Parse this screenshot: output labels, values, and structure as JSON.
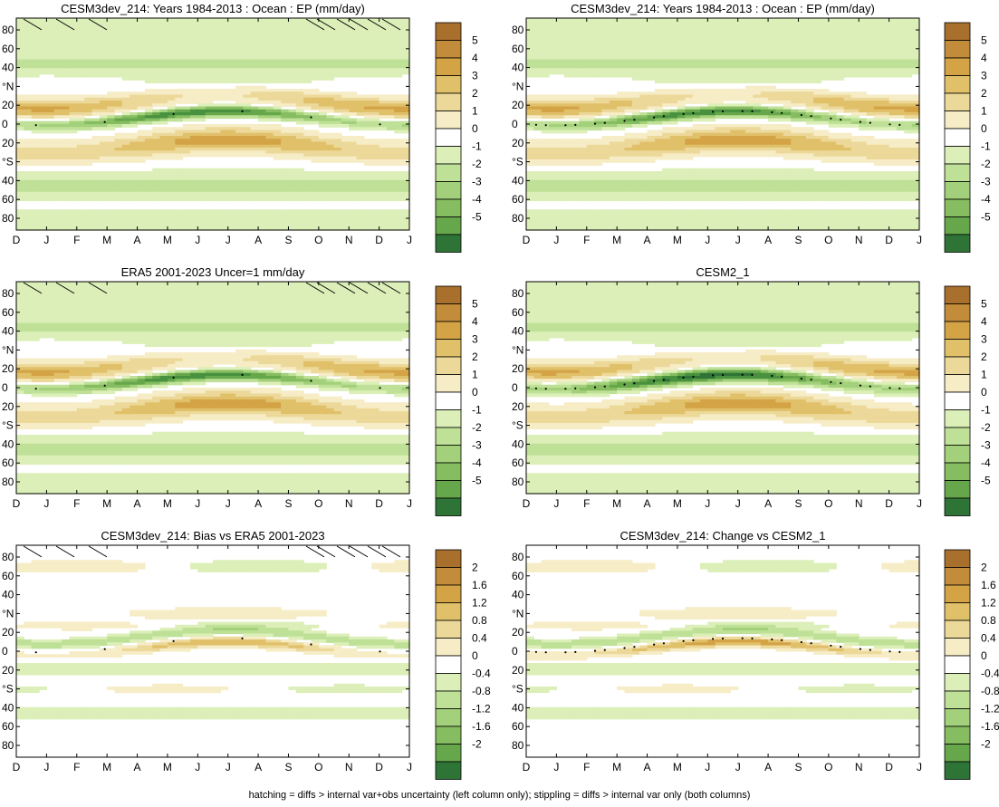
{
  "figure": {
    "footnote": "hatching = diffs > internal var+obs uncertainty (left column only); stippling = diffs > internal var only (both columns)"
  },
  "palette": {
    "brown": [
      "#f6ecc6",
      "#ecd99a",
      "#e1c06a",
      "#d3a346",
      "#c28c3a",
      "#a96f2c"
    ],
    "green": [
      "#dcefb8",
      "#bfe197",
      "#a3d07a",
      "#86bd60",
      "#67a74b",
      "#48913e",
      "#2f7437"
    ],
    "zero": "#ffffff",
    "land_gray": "#ffffff"
  },
  "chart_data": [
    {
      "type": "heatmap",
      "title": "CESM3dev_214: Years 1984-2013 : Ocean : EP (mm/day)",
      "field": "climatology",
      "hatch_years": "1984-2013",
      "xlabel": "",
      "ylabel": "",
      "x_ticks": [
        "D",
        "J",
        "F",
        "M",
        "A",
        "M",
        "J",
        "J",
        "A",
        "S",
        "O",
        "N",
        "D",
        "J"
      ],
      "y_ticks": [
        "80",
        "60",
        "40",
        "°N",
        "20",
        "0",
        "20",
        "°S",
        "40",
        "60",
        "80"
      ],
      "ylim": [
        -90,
        90
      ],
      "colorbar": {
        "labels": [
          "5",
          "4",
          "3",
          "2",
          "1",
          "0",
          "-1",
          "-2",
          "-3",
          "-4",
          "-5"
        ],
        "range": [
          -5.5,
          5.5
        ]
      },
      "hatching": true,
      "stipple_note": "few dots near ITCZ"
    },
    {
      "type": "heatmap",
      "title": "CESM3dev_214: Years 1984-2013 : Ocean : EP (mm/day)",
      "field": "climatology",
      "xlabel": "",
      "ylabel": "",
      "x_ticks": [
        "D",
        "J",
        "F",
        "M",
        "A",
        "M",
        "J",
        "J",
        "A",
        "S",
        "O",
        "N",
        "D",
        "J"
      ],
      "y_ticks": [
        "80",
        "60",
        "40",
        "°N",
        "20",
        "0",
        "20",
        "°S",
        "40",
        "60",
        "80"
      ],
      "ylim": [
        -90,
        90
      ],
      "colorbar": {
        "labels": [
          "5",
          "4",
          "3",
          "2",
          "1",
          "0",
          "-1",
          "-2",
          "-3",
          "-4",
          "-5"
        ],
        "range": [
          -5.5,
          5.5
        ]
      },
      "hatching": false
    },
    {
      "type": "heatmap",
      "title": "ERA5 2001-2023 Uncer=1 mm/day",
      "field": "climatology",
      "xlabel": "",
      "ylabel": "",
      "x_ticks": [
        "D",
        "J",
        "F",
        "M",
        "A",
        "M",
        "J",
        "J",
        "A",
        "S",
        "O",
        "N",
        "D",
        "J"
      ],
      "y_ticks": [
        "80",
        "60",
        "40",
        "°N",
        "20",
        "0",
        "20",
        "°S",
        "40",
        "60",
        "80"
      ],
      "ylim": [
        -90,
        90
      ],
      "colorbar": {
        "labels": [
          "5",
          "4",
          "3",
          "2",
          "1",
          "0",
          "-1",
          "-2",
          "-3",
          "-4",
          "-5"
        ],
        "range": [
          -5.5,
          5.5
        ]
      },
      "hatching": true
    },
    {
      "type": "heatmap",
      "title": "CESM2_1",
      "field": "climatology",
      "xlabel": "",
      "ylabel": "",
      "x_ticks": [
        "D",
        "J",
        "F",
        "M",
        "A",
        "M",
        "J",
        "J",
        "A",
        "S",
        "O",
        "N",
        "D",
        "J"
      ],
      "y_ticks": [
        "80",
        "60",
        "40",
        "°N",
        "20",
        "0",
        "20",
        "°S",
        "40",
        "60",
        "80"
      ],
      "ylim": [
        -90,
        90
      ],
      "colorbar": {
        "labels": [
          "5",
          "4",
          "3",
          "2",
          "1",
          "0",
          "-1",
          "-2",
          "-3",
          "-4",
          "-5"
        ],
        "range": [
          -5.5,
          5.5
        ]
      },
      "hatching": false
    },
    {
      "type": "heatmap",
      "title": "CESM3dev_214: Bias vs ERA5 2001-2023",
      "field": "bias",
      "xlabel": "",
      "ylabel": "",
      "x_ticks": [
        "D",
        "J",
        "F",
        "M",
        "A",
        "M",
        "J",
        "J",
        "A",
        "S",
        "O",
        "N",
        "D",
        "J"
      ],
      "y_ticks": [
        "80",
        "60",
        "40",
        "°N",
        "20",
        "0",
        "20",
        "°S",
        "40",
        "60",
        "80"
      ],
      "ylim": [
        -90,
        90
      ],
      "colorbar": {
        "labels": [
          "2",
          "1.6",
          "1.2",
          "0.8",
          "0.4",
          "0",
          "-0.4",
          "-0.8",
          "-1.2",
          "-1.6",
          "-2"
        ],
        "range": [
          -2.2,
          2.2
        ]
      },
      "hatching": true
    },
    {
      "type": "heatmap",
      "title": "CESM3dev_214: Change vs CESM2_1",
      "field": "change",
      "xlabel": "",
      "ylabel": "",
      "x_ticks": [
        "D",
        "J",
        "F",
        "M",
        "A",
        "M",
        "J",
        "J",
        "A",
        "S",
        "O",
        "N",
        "D",
        "J"
      ],
      "y_ticks": [
        "80",
        "60",
        "40",
        "°N",
        "20",
        "0",
        "20",
        "°S",
        "40",
        "60",
        "80"
      ],
      "ylim": [
        -90,
        90
      ],
      "colorbar": {
        "labels": [
          "2",
          "1.6",
          "1.2",
          "0.8",
          "0.4",
          "0",
          "-0.4",
          "-0.8",
          "-1.2",
          "-1.6",
          "-2"
        ],
        "range": [
          -2.2,
          2.2
        ]
      },
      "hatching": false
    }
  ]
}
